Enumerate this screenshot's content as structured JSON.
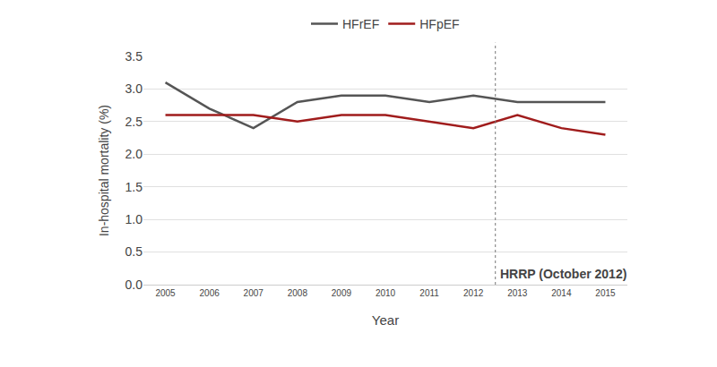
{
  "chart_data": {
    "type": "line",
    "x_label": "Year",
    "y_label": "In-hospital mortality (%)",
    "x": [
      2005,
      2006,
      2007,
      2008,
      2009,
      2010,
      2011,
      2012,
      2013,
      2014,
      2015
    ],
    "series": [
      {
        "name": "HFrEF",
        "color": "#555555",
        "values": [
          3.1,
          2.7,
          2.4,
          2.8,
          2.9,
          2.9,
          2.8,
          2.9,
          2.8,
          2.8,
          2.8
        ]
      },
      {
        "name": "HFpEF",
        "color": "#a01c1c",
        "values": [
          2.6,
          2.6,
          2.6,
          2.5,
          2.6,
          2.6,
          2.5,
          2.4,
          2.6,
          2.4,
          2.3
        ]
      }
    ],
    "xlim": [
      2004.5,
      2015.5
    ],
    "xticks": [
      2005,
      2006,
      2007,
      2008,
      2009,
      2010,
      2011,
      2012,
      2013,
      2014,
      2015
    ],
    "ylim": [
      0,
      3.5
    ],
    "yticks": [
      {
        "value": 0,
        "label": "0.0"
      },
      0.5,
      {
        "value": 1,
        "label": "1.0"
      },
      1.5,
      {
        "value": 2,
        "label": "2.0"
      },
      2.5,
      {
        "value": 3,
        "label": "3.0"
      },
      3.5
    ],
    "annotations": [
      {
        "text": "HRRP (October 2012)",
        "x": 2012.5
      }
    ],
    "grid": true,
    "legend": "top"
  }
}
